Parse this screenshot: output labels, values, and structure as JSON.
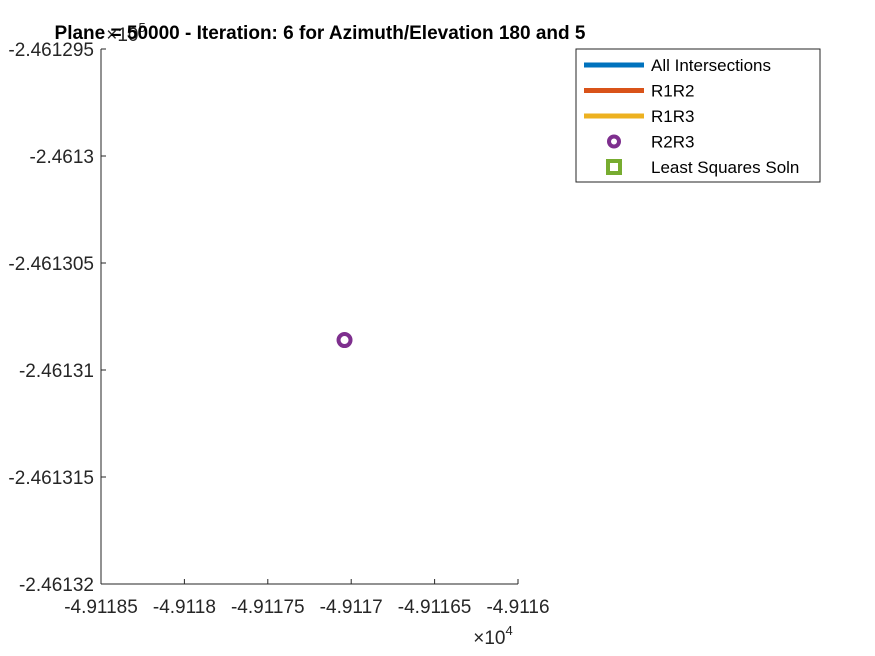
{
  "chart_data": {
    "type": "scatter",
    "title": "Plane = 50000 - Iteration: 6 for Azimuth/Elevation 180 and 5",
    "xlabel": "",
    "ylabel": "",
    "x_exponent": "×10^4",
    "y_exponent": "×10^5",
    "xlim": [
      -4.91185,
      -4.9116
    ],
    "ylim": [
      -2.46132,
      -2.461295
    ],
    "x_ticks": [
      -4.91185,
      -4.9118,
      -4.91175,
      -4.9117,
      -4.91165,
      -4.9116
    ],
    "x_tick_labels": [
      "-4.91185",
      "-4.9118",
      "-4.91175",
      "-4.9117",
      "-4.91165",
      "-4.9116"
    ],
    "y_ticks": [
      -2.461295,
      -2.4613,
      -2.461305,
      -2.46131,
      -2.461315,
      -2.46132
    ],
    "y_tick_labels": [
      "-2.461295",
      "-2.4613",
      "-2.461305",
      "-2.46131",
      "-2.461315",
      "-2.46132"
    ],
    "grid": false,
    "legend_position": "top-right",
    "series": [
      {
        "name": "All Intersections",
        "style": "line",
        "color": "#0072BD",
        "points": []
      },
      {
        "name": "R1R2",
        "style": "line",
        "color": "#D95319",
        "points": []
      },
      {
        "name": "R1R3",
        "style": "line",
        "color": "#EDB120",
        "points": []
      },
      {
        "name": "R2R3",
        "style": "circle",
        "color": "#7E2F8E",
        "points": [
          [
            -4.911704,
            -2.4613086
          ]
        ]
      },
      {
        "name": "Least Squares Soln",
        "style": "square",
        "color": "#77AC30",
        "points": []
      }
    ]
  }
}
